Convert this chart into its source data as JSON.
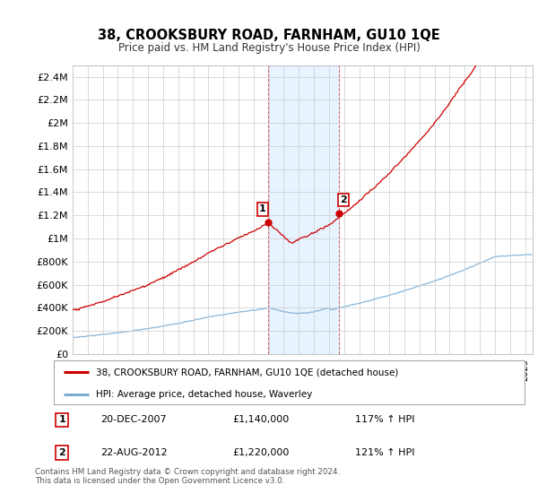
{
  "title": "38, CROOKSBURY ROAD, FARNHAM, GU10 1QE",
  "subtitle": "Price paid vs. HM Land Registry's House Price Index (HPI)",
  "ylim": [
    0,
    2500000
  ],
  "yticks": [
    0,
    200000,
    400000,
    600000,
    800000,
    1000000,
    1200000,
    1400000,
    1600000,
    1800000,
    2000000,
    2200000,
    2400000
  ],
  "ytick_labels": [
    "£0",
    "£200K",
    "£400K",
    "£600K",
    "£800K",
    "£1M",
    "£1.2M",
    "£1.4M",
    "£1.6M",
    "£1.8M",
    "£2M",
    "£2.2M",
    "£2.4M"
  ],
  "xlim_start": 1995.0,
  "xlim_end": 2025.5,
  "sale1_x": 2007.97,
  "sale1_y": 1140000,
  "sale1_label": "1",
  "sale1_date": "20-DEC-2007",
  "sale1_price": "£1,140,000",
  "sale1_hpi": "117% ↑ HPI",
  "sale2_x": 2012.64,
  "sale2_y": 1220000,
  "sale2_label": "2",
  "sale2_date": "22-AUG-2012",
  "sale2_price": "£1,220,000",
  "sale2_hpi": "121% ↑ HPI",
  "highlight_x_start": 2007.97,
  "highlight_x_end": 2012.64,
  "property_color": "#cc0000",
  "hpi_color": "#7aadd4",
  "highlight_color": "#ddeeff",
  "highlight_alpha": 0.6,
  "grid_color": "#cccccc",
  "legend_property": "38, CROOKSBURY ROAD, FARNHAM, GU10 1QE (detached house)",
  "legend_hpi": "HPI: Average price, detached house, Waverley",
  "footnote": "Contains HM Land Registry data © Crown copyright and database right 2024.\nThis data is licensed under the Open Government Licence v3.0."
}
